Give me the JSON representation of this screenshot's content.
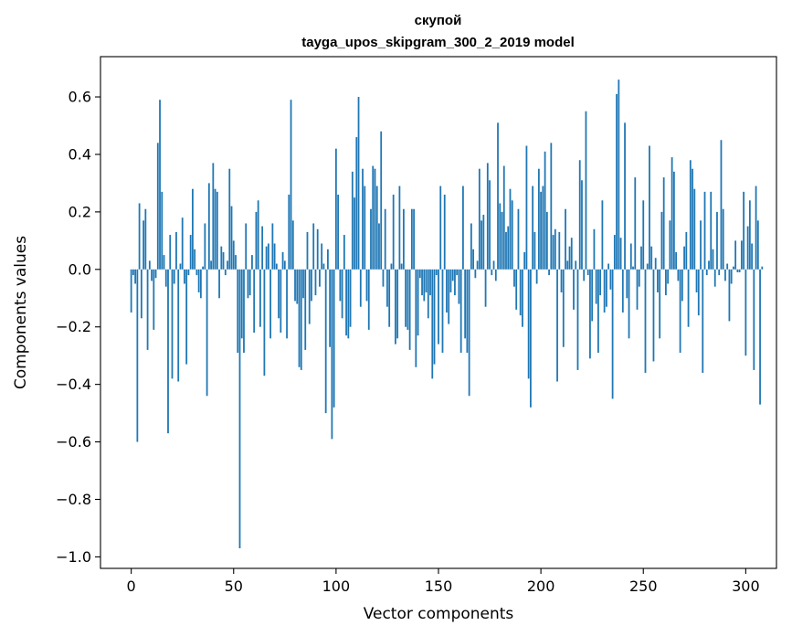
{
  "chart_data": {
    "type": "bar",
    "title": "скупой",
    "subtitle": "tayga_upos_skipgram_300_2_2019 model",
    "xlabel": "Vector components",
    "ylabel": "Components values",
    "xlim": [
      -15,
      315
    ],
    "ylim": [
      -1.04,
      0.74
    ],
    "xticks": [
      0,
      50,
      100,
      150,
      200,
      250,
      300
    ],
    "yticks": [
      -1.0,
      -0.8,
      -0.6,
      -0.4,
      -0.2,
      0.0,
      0.2,
      0.4,
      0.6
    ],
    "ytick_labels": [
      "−1.0",
      "−0.8",
      "−0.6",
      "−0.4",
      "−0.2",
      "0.0",
      "0.2",
      "0.4",
      "0.6"
    ],
    "grid": false,
    "legend": "none",
    "color": "#1f77b4",
    "x_start": 0,
    "values": [
      -0.15,
      -0.02,
      -0.05,
      -0.6,
      0.23,
      -0.17,
      0.17,
      0.21,
      -0.28,
      0.03,
      -0.04,
      -0.21,
      -0.03,
      0.44,
      0.59,
      0.27,
      0.05,
      -0.06,
      -0.57,
      0.12,
      -0.38,
      -0.05,
      0.13,
      -0.39,
      0.02,
      0.18,
      -0.05,
      -0.33,
      -0.02,
      0.12,
      0.28,
      0.07,
      -0.02,
      -0.08,
      -0.1,
      0.01,
      0.16,
      -0.44,
      0.3,
      0.03,
      0.37,
      0.28,
      0.27,
      -0.1,
      0.08,
      0.06,
      -0.02,
      0.03,
      0.35,
      0.22,
      0.1,
      0.05,
      -0.29,
      -0.97,
      -0.24,
      -0.29,
      0.16,
      -0.1,
      -0.09,
      0.05,
      -0.22,
      0.2,
      0.24,
      -0.2,
      0.15,
      -0.37,
      0.08,
      0.09,
      -0.24,
      0.16,
      0.09,
      0.02,
      -0.17,
      -0.22,
      0.06,
      0.03,
      -0.24,
      0.26,
      0.59,
      0.17,
      -0.11,
      -0.12,
      -0.34,
      -0.35,
      -0.1,
      -0.28,
      0.13,
      -0.19,
      -0.11,
      0.16,
      -0.09,
      0.14,
      -0.06,
      0.09,
      0.02,
      -0.5,
      0.07,
      -0.27,
      -0.59,
      -0.48,
      0.42,
      0.26,
      -0.11,
      -0.17,
      0.12,
      -0.23,
      -0.24,
      -0.2,
      0.34,
      0.25,
      0.46,
      0.6,
      -0.13,
      0.35,
      0.29,
      -0.11,
      -0.21,
      0.21,
      0.36,
      0.35,
      0.29,
      0.16,
      0.48,
      -0.06,
      0.21,
      -0.13,
      -0.2,
      0.02,
      0.26,
      -0.26,
      -0.24,
      0.29,
      0.02,
      0.21,
      -0.2,
      -0.21,
      -0.28,
      0.21,
      0.21,
      -0.34,
      -0.23,
      -0.03,
      -0.09,
      -0.11,
      -0.08,
      -0.17,
      -0.09,
      -0.38,
      -0.33,
      -0.02,
      -0.26,
      0.29,
      -0.29,
      0.26,
      -0.15,
      -0.19,
      -0.08,
      -0.04,
      -0.09,
      -0.02,
      -0.12,
      -0.29,
      0.29,
      -0.24,
      -0.29,
      -0.44,
      0.16,
      0.07,
      -0.03,
      0.03,
      0.35,
      0.17,
      0.19,
      -0.13,
      0.37,
      0.31,
      -0.02,
      0.03,
      -0.04,
      0.51,
      0.23,
      0.2,
      0.36,
      0.13,
      0.15,
      0.28,
      0.24,
      -0.06,
      -0.14,
      0.21,
      -0.16,
      -0.2,
      0.06,
      0.43,
      -0.38,
      -0.48,
      0.29,
      0.13,
      -0.05,
      0.35,
      0.27,
      0.29,
      0.41,
      0.2,
      -0.02,
      0.44,
      0.12,
      0.14,
      -0.39,
      0.13,
      -0.08,
      -0.27,
      0.21,
      0.03,
      0.08,
      0.11,
      -0.14,
      0.03,
      -0.35,
      0.38,
      0.31,
      -0.04,
      0.55,
      -0.02,
      -0.31,
      -0.18,
      0.14,
      -0.12,
      -0.29,
      -0.09,
      0.24,
      -0.15,
      -0.13,
      0.02,
      -0.07,
      -0.45,
      0.12,
      0.61,
      0.66,
      0.11,
      -0.15,
      0.51,
      -0.1,
      -0.24,
      0.09,
      0.01,
      0.32,
      -0.14,
      -0.06,
      0.08,
      0.24,
      -0.36,
      0.02,
      0.43,
      0.08,
      -0.32,
      0.04,
      -0.08,
      -0.24,
      0.2,
      0.32,
      -0.09,
      -0.05,
      0.17,
      0.39,
      0.34,
      0.06,
      -0.04,
      -0.29,
      -0.11,
      0.08,
      0.13,
      -0.2,
      0.38,
      0.35,
      0.28,
      -0.08,
      -0.16,
      0.17,
      -0.36,
      0.27,
      -0.02,
      0.03,
      0.27,
      0.07,
      -0.06,
      0.2,
      -0.02,
      0.45,
      0.21,
      -0.04,
      0.02,
      -0.18,
      -0.05,
      0.01,
      0.1,
      -0.01,
      -0.01,
      0.1,
      0.27,
      -0.3,
      0.15,
      0.24,
      0.09,
      -0.35,
      0.29,
      0.17,
      -0.47,
      0.01
    ]
  }
}
